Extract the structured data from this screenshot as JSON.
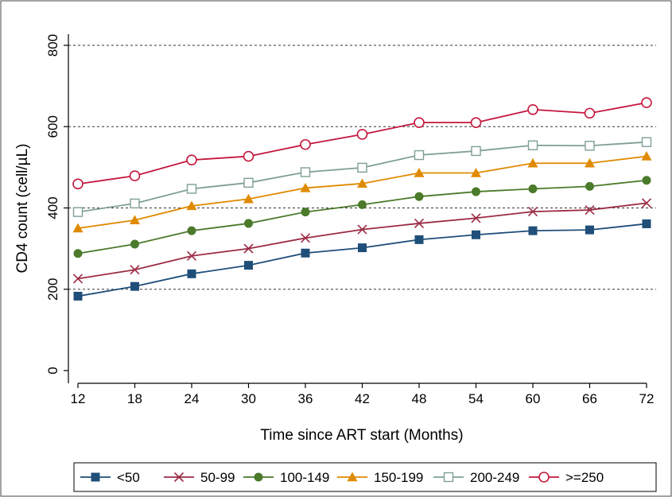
{
  "chart_data": {
    "type": "line",
    "title": "",
    "xlabel": "Time since ART start (Months)",
    "ylabel": "CD4 count (cell/µL)",
    "x": [
      12,
      18,
      24,
      30,
      36,
      42,
      48,
      54,
      60,
      66,
      72
    ],
    "x_ticks": [
      "12",
      "18",
      "24",
      "30",
      "36",
      "42",
      "48",
      "54",
      "60",
      "66",
      "72"
    ],
    "xlim": [
      12,
      72
    ],
    "ylim": [
      0,
      800
    ],
    "y_ticks": [
      "0",
      "200",
      "400",
      "600",
      "800"
    ],
    "grid": "horizontal dashed at 200, 400, 600, 800",
    "legend_position": "bottom",
    "series": [
      {
        "name": "<50",
        "color": "#1f4e79",
        "marker": "filled-square",
        "values": [
          183,
          207,
          238,
          259,
          289,
          302,
          322,
          334,
          344,
          346,
          361
        ]
      },
      {
        "name": "50-99",
        "color": "#9c2b44",
        "marker": "x",
        "values": [
          226,
          248,
          282,
          300,
          326,
          347,
          362,
          375,
          391,
          395,
          412
        ]
      },
      {
        "name": "100-149",
        "color": "#4a7a2a",
        "marker": "filled-circle",
        "values": [
          288,
          311,
          344,
          362,
          390,
          408,
          428,
          440,
          447,
          453,
          468
        ]
      },
      {
        "name": "150-199",
        "color": "#e08a00",
        "marker": "filled-triangle",
        "values": [
          350,
          370,
          405,
          422,
          449,
          460,
          486,
          486,
          510,
          510,
          527
        ]
      },
      {
        "name": "200-249",
        "color": "#7f9f94",
        "marker": "hollow-square",
        "values": [
          390,
          411,
          447,
          462,
          488,
          499,
          530,
          540,
          554,
          553,
          562
        ]
      },
      {
        "name": ">=250",
        "color": "#c4173d",
        "marker": "hollow-circle",
        "values": [
          459,
          479,
          518,
          527,
          556,
          581,
          610,
          610,
          642,
          633,
          659
        ]
      }
    ]
  }
}
